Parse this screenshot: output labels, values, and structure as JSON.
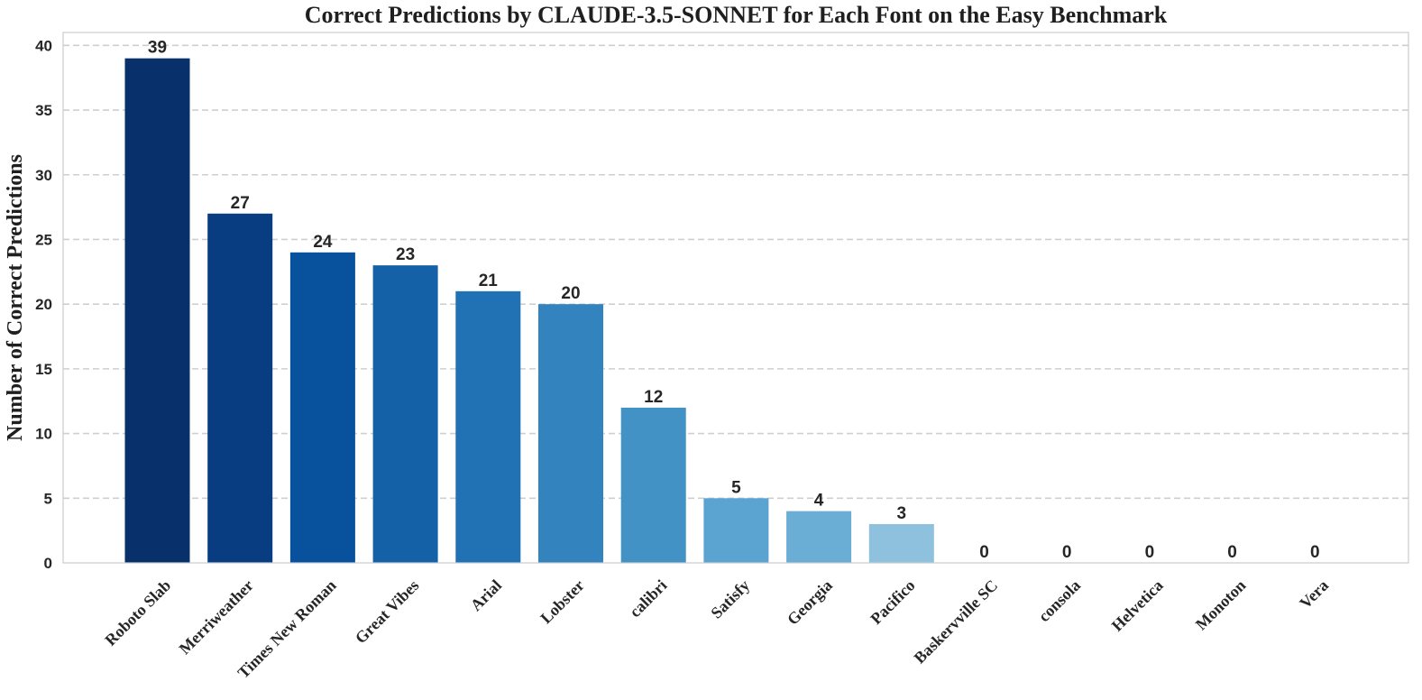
{
  "chart_data": {
    "type": "bar",
    "title": "Correct Predictions by CLAUDE-3.5-SONNET for Each Font on the Easy Benchmark",
    "xlabel": "",
    "ylabel": "Number of Correct Predictions",
    "categories": [
      "Roboto Slab",
      "Merriweather",
      "Times New Roman",
      "Great Vibes",
      "Arial",
      "Lobster",
      "calibri",
      "Satisfy",
      "Georgia",
      "Pacifico",
      "Baskervville SC",
      "consola",
      "Helvetica",
      "Monoton",
      "Vera"
    ],
    "values": [
      39,
      27,
      24,
      23,
      21,
      20,
      12,
      5,
      4,
      3,
      0,
      0,
      0,
      0,
      0
    ],
    "bar_colors": [
      "#08306b",
      "#083e81",
      "#08519c",
      "#1461a8",
      "#2171b5",
      "#3383be",
      "#4292c6",
      "#5ba3d0",
      "#6aaed6",
      "#8dc1dd",
      "#9ecae1",
      "#b1d5e8",
      "#c6dbef",
      "#d5e5f4",
      "#deebf7"
    ],
    "ylim": [
      0,
      41
    ],
    "yticks": [
      0,
      5,
      10,
      15,
      20,
      25,
      30,
      35,
      40
    ],
    "grid": true,
    "grid_axis": "y",
    "data_labels": true
  }
}
